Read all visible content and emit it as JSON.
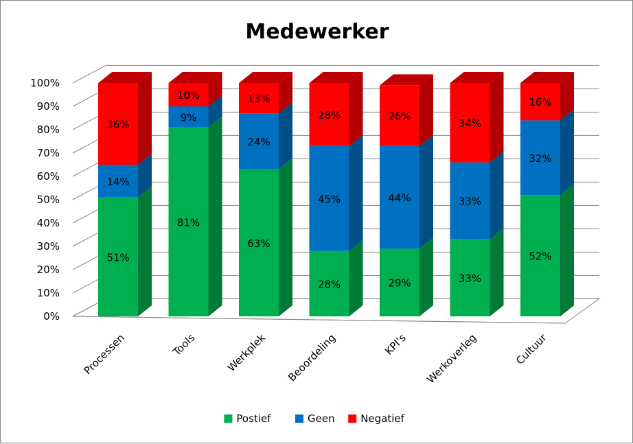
{
  "chart_data": {
    "type": "bar",
    "stacked": true,
    "style": "3d-stacked-percent",
    "title": "Medewerker",
    "categories": [
      "Processen",
      "Tools",
      "Werkplek",
      "Beoordeling",
      "KPI's",
      "Werkoverleg",
      "Cultuur"
    ],
    "series": [
      {
        "name": "Postief",
        "color": "#00B050",
        "side_color": "#007A37",
        "top_color": "#00A048",
        "values": [
          51,
          81,
          63,
          28,
          29,
          33,
          52
        ],
        "labels": [
          "51%",
          "81%",
          "63%",
          "28%",
          "29%",
          "33%",
          "52%"
        ]
      },
      {
        "name": "Geen",
        "color": "#0070C0",
        "side_color": "#004F87",
        "top_color": "#0060A8",
        "values": [
          14,
          9,
          24,
          45,
          44,
          33,
          32
        ],
        "labels": [
          "14%",
          "9%",
          "24%",
          "45%",
          "44%",
          "33%",
          "32%"
        ]
      },
      {
        "name": "Negatief",
        "color": "#FF0000",
        "side_color": "#B30000",
        "top_color": "#C00000",
        "values": [
          36,
          10,
          13,
          28,
          26,
          34,
          16
        ],
        "labels": [
          "36%",
          "10%",
          "13%",
          "28%",
          "26%",
          "34%",
          "16%"
        ]
      }
    ],
    "ylim": [
      0,
      100
    ],
    "yticks": [
      "0%",
      "10%",
      "20%",
      "30%",
      "40%",
      "50%",
      "60%",
      "70%",
      "80%",
      "90%",
      "100%"
    ],
    "xlabel": "",
    "ylabel": "",
    "grid": true,
    "legend_position": "bottom"
  }
}
